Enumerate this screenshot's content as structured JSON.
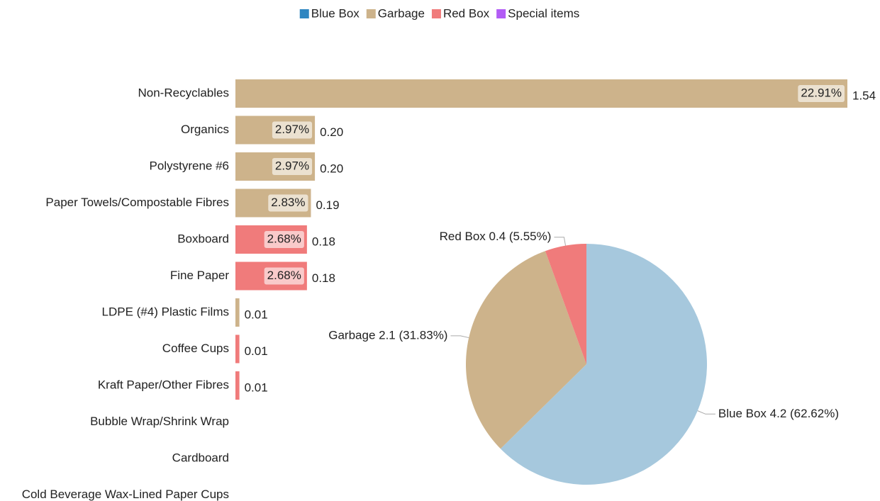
{
  "chart_data": [
    {
      "type": "hbar",
      "legend": {
        "position": "top",
        "series": [
          {
            "name": "Blue Box",
            "color": "#2e86c1"
          },
          {
            "name": "Garbage",
            "color": "#cdb38b"
          },
          {
            "name": "Red Box",
            "color": "#f07b7b"
          },
          {
            "name": "Special items",
            "color": "#b25cf5"
          }
        ]
      },
      "categories": [
        "Non-Recyclables",
        "Organics",
        "Polystyrene #6",
        "Paper Towels/Compostable Fibres",
        "Boxboard",
        "Fine Paper",
        "LDPE (#4) Plastic Films",
        "Coffee Cups",
        "Kraft Paper/Other Fibres",
        "Bubble Wrap/Shrink Wrap",
        "Cardboard",
        "Cold Beverage Wax-Lined Paper Cups"
      ],
      "values": [
        1.54,
        0.2,
        0.2,
        0.19,
        0.18,
        0.18,
        0.01,
        0.01,
        0.01,
        null,
        null,
        null
      ],
      "value_labels": [
        "1.54",
        "0.20",
        "0.20",
        "0.19",
        "0.18",
        "0.18",
        "0.01",
        "0.01",
        "0.01",
        null,
        null,
        null
      ],
      "percent_labels": [
        "22.91%",
        "2.97%",
        "2.97%",
        "2.83%",
        "2.68%",
        "2.68%",
        null,
        null,
        null,
        null,
        null,
        null
      ],
      "colors": [
        "#cdb38b",
        "#cdb38b",
        "#cdb38b",
        "#cdb38b",
        "#f07b7b",
        "#f07b7b",
        "#cdb38b",
        "#f07b7b",
        "#f07b7b",
        null,
        null,
        null
      ]
    },
    {
      "type": "pie",
      "categories": [
        "Blue Box",
        "Garbage",
        "Red Box"
      ],
      "values": [
        62.62,
        31.83,
        5.55
      ],
      "labels": [
        "Blue Box 4.2 (62.62%)",
        "Garbage 2.1 (31.83%)",
        "Red Box 0.4 (5.55%)"
      ],
      "colors": [
        "#a6c8dd",
        "#cdb38b",
        "#f07b7b"
      ]
    }
  ]
}
